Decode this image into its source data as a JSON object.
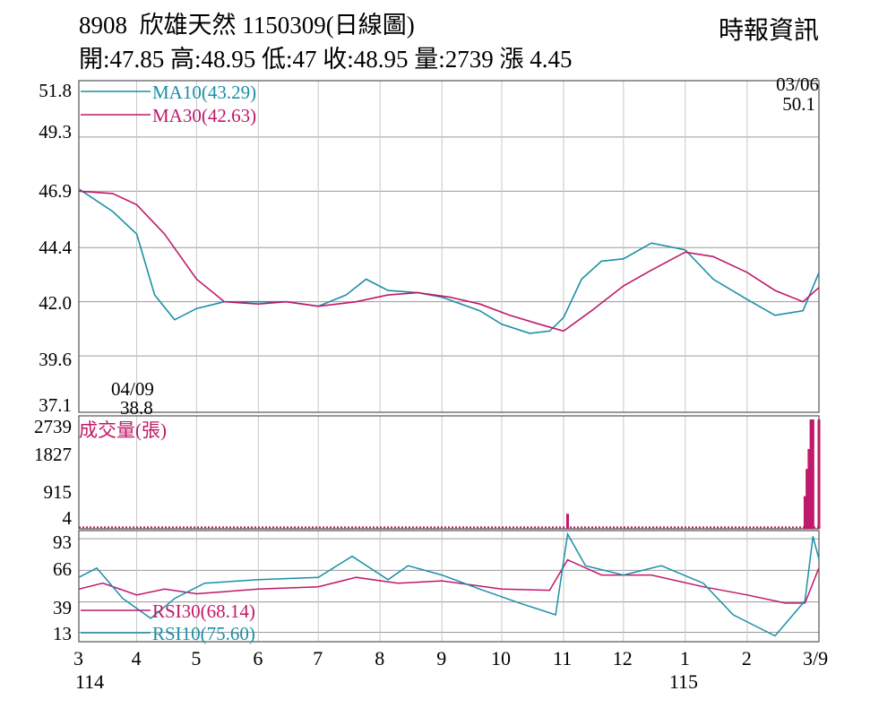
{
  "header": {
    "title": "8908  欣雄天然 1150309(日線圖)",
    "summary": "開:47.85 高:48.95 低:47 收:48.95 量:2739 漲 4.45",
    "source": "時報資訊"
  },
  "colors": {
    "up": "#e8001e",
    "down": "#000000",
    "ma10": "#1b8fa6",
    "ma30": "#c0186a",
    "volume": "#c0186a",
    "rsi10": "#1b8fa6",
    "rsi30": "#c0186a",
    "grid": "#9a9a9a"
  },
  "chart_data": [
    {
      "type": "line",
      "panel": "price",
      "ylim": [
        37.1,
        51.8
      ],
      "y_ticks": [
        "51.8",
        "49.3",
        "46.9",
        "44.4",
        "42.0",
        "39.6",
        "37.1"
      ],
      "legend": [
        {
          "label": "MA10(43.29)"
        },
        {
          "label": "MA30(42.63)"
        }
      ],
      "annotations": {
        "high": {
          "date": "03/06",
          "value": "50.1"
        },
        "low": {
          "date": "04/09",
          "value": "38.8"
        }
      },
      "series": [
        {
          "name": "MA10(43.29)",
          "x": [
            "2025-03-03",
            "2025-03-20",
            "2025-04-01",
            "2025-04-10",
            "2025-04-20",
            "2025-05-01",
            "2025-05-15",
            "2025-06-01",
            "2025-06-15",
            "2025-07-01",
            "2025-07-15",
            "2025-07-25",
            "2025-08-05",
            "2025-08-20",
            "2025-09-01",
            "2025-09-20",
            "2025-10-01",
            "2025-10-15",
            "2025-10-25",
            "2025-11-01",
            "2025-11-10",
            "2025-11-20",
            "2025-12-01",
            "2025-12-15",
            "2026-01-01",
            "2026-01-15",
            "2026-02-01",
            "2026-02-15",
            "2026-03-01",
            "2026-03-09"
          ],
          "values": [
            47.0,
            46.0,
            45.0,
            42.3,
            41.2,
            41.7,
            42.0,
            42.0,
            42.0,
            41.8,
            42.3,
            43.0,
            42.5,
            42.4,
            42.2,
            41.6,
            41.0,
            40.6,
            40.7,
            41.3,
            43.0,
            43.8,
            43.9,
            44.6,
            44.3,
            43.0,
            42.1,
            41.4,
            41.6,
            43.29
          ]
        },
        {
          "name": "MA30(42.63)",
          "x": [
            "2025-03-03",
            "2025-03-20",
            "2025-04-01",
            "2025-04-15",
            "2025-05-01",
            "2025-05-15",
            "2025-06-01",
            "2025-06-15",
            "2025-07-01",
            "2025-07-20",
            "2025-08-05",
            "2025-08-20",
            "2025-09-05",
            "2025-09-20",
            "2025-10-05",
            "2025-10-20",
            "2025-11-01",
            "2025-11-15",
            "2025-12-01",
            "2025-12-15",
            "2026-01-01",
            "2026-01-15",
            "2026-02-01",
            "2026-02-15",
            "2026-03-01",
            "2026-03-09"
          ],
          "values": [
            46.9,
            46.8,
            46.3,
            45.0,
            43.0,
            42.0,
            41.9,
            42.0,
            41.8,
            42.0,
            42.3,
            42.4,
            42.2,
            41.9,
            41.4,
            41.0,
            40.7,
            41.6,
            42.7,
            43.4,
            44.2,
            44.0,
            43.3,
            42.5,
            42.0,
            42.63
          ]
        }
      ]
    },
    {
      "type": "bar",
      "panel": "volume",
      "title": "成交量(張)",
      "y_ticks": [
        "2739",
        "1827",
        "915",
        "4"
      ],
      "ylim": [
        4,
        2739
      ],
      "series": [
        {
          "name": "成交量(張)",
          "x": [
            "2025-11-03",
            "2026-03-02",
            "2026-03-03",
            "2026-03-04",
            "2026-03-05",
            "2026-03-06",
            "2026-03-09"
          ],
          "values": [
            380,
            820,
            1500,
            2000,
            2739,
            2739,
            2739
          ]
        }
      ],
      "baseline_value": 40
    },
    {
      "type": "line",
      "panel": "rsi",
      "y_ticks": [
        "93",
        "66",
        "39",
        "13"
      ],
      "ylim": [
        5,
        100
      ],
      "legend": [
        {
          "label": "RSI30(68.14)"
        },
        {
          "label": "RSI10(75.60)"
        }
      ],
      "series": [
        {
          "name": "RSI30(68.14)",
          "x": [
            "2025-03-03",
            "2025-03-15",
            "2025-04-01",
            "2025-04-15",
            "2025-05-01",
            "2025-06-01",
            "2025-07-01",
            "2025-07-20",
            "2025-08-10",
            "2025-09-01",
            "2025-10-01",
            "2025-10-25",
            "2025-11-03",
            "2025-11-20",
            "2025-12-15",
            "2026-01-10",
            "2026-02-01",
            "2026-02-20",
            "2026-03-02",
            "2026-03-09"
          ],
          "values": [
            50,
            55,
            45,
            50,
            46,
            50,
            52,
            60,
            55,
            57,
            50,
            49,
            75,
            62,
            62,
            52,
            45,
            38,
            38,
            68.14
          ]
        },
        {
          "name": "RSI10(75.60)",
          "x": [
            "2025-03-03",
            "2025-03-12",
            "2025-03-25",
            "2025-04-08",
            "2025-04-20",
            "2025-05-05",
            "2025-06-01",
            "2025-07-01",
            "2025-07-18",
            "2025-08-05",
            "2025-08-15",
            "2025-09-01",
            "2025-09-20",
            "2025-10-10",
            "2025-10-28",
            "2025-11-03",
            "2025-11-12",
            "2025-12-01",
            "2025-12-20",
            "2026-01-10",
            "2026-01-25",
            "2026-02-15",
            "2026-03-02",
            "2026-03-06",
            "2026-03-09"
          ],
          "values": [
            60,
            68,
            42,
            25,
            42,
            55,
            58,
            60,
            78,
            58,
            70,
            62,
            50,
            38,
            28,
            97,
            70,
            62,
            70,
            55,
            28,
            10,
            40,
            95,
            75.6
          ]
        }
      ]
    }
  ],
  "x_axis": {
    "ticks": [
      {
        "label": "3",
        "date": "2025-03-03"
      },
      {
        "label": "4",
        "date": "2025-04-01"
      },
      {
        "label": "5",
        "date": "2025-05-01"
      },
      {
        "label": "6",
        "date": "2025-06-01"
      },
      {
        "label": "7",
        "date": "2025-07-01"
      },
      {
        "label": "8",
        "date": "2025-08-01"
      },
      {
        "label": "9",
        "date": "2025-09-01"
      },
      {
        "label": "10",
        "date": "2025-10-01"
      },
      {
        "label": "11",
        "date": "2025-11-01"
      },
      {
        "label": "12",
        "date": "2025-12-01"
      },
      {
        "label": "1",
        "date": "2026-01-01"
      },
      {
        "label": "2",
        "date": "2026-02-01"
      },
      {
        "label": "3/9",
        "date": "2026-03-09"
      }
    ],
    "year_labels": [
      {
        "label": "114",
        "date": "2025-03-03"
      },
      {
        "label": "115",
        "date": "2026-01-01"
      }
    ]
  }
}
